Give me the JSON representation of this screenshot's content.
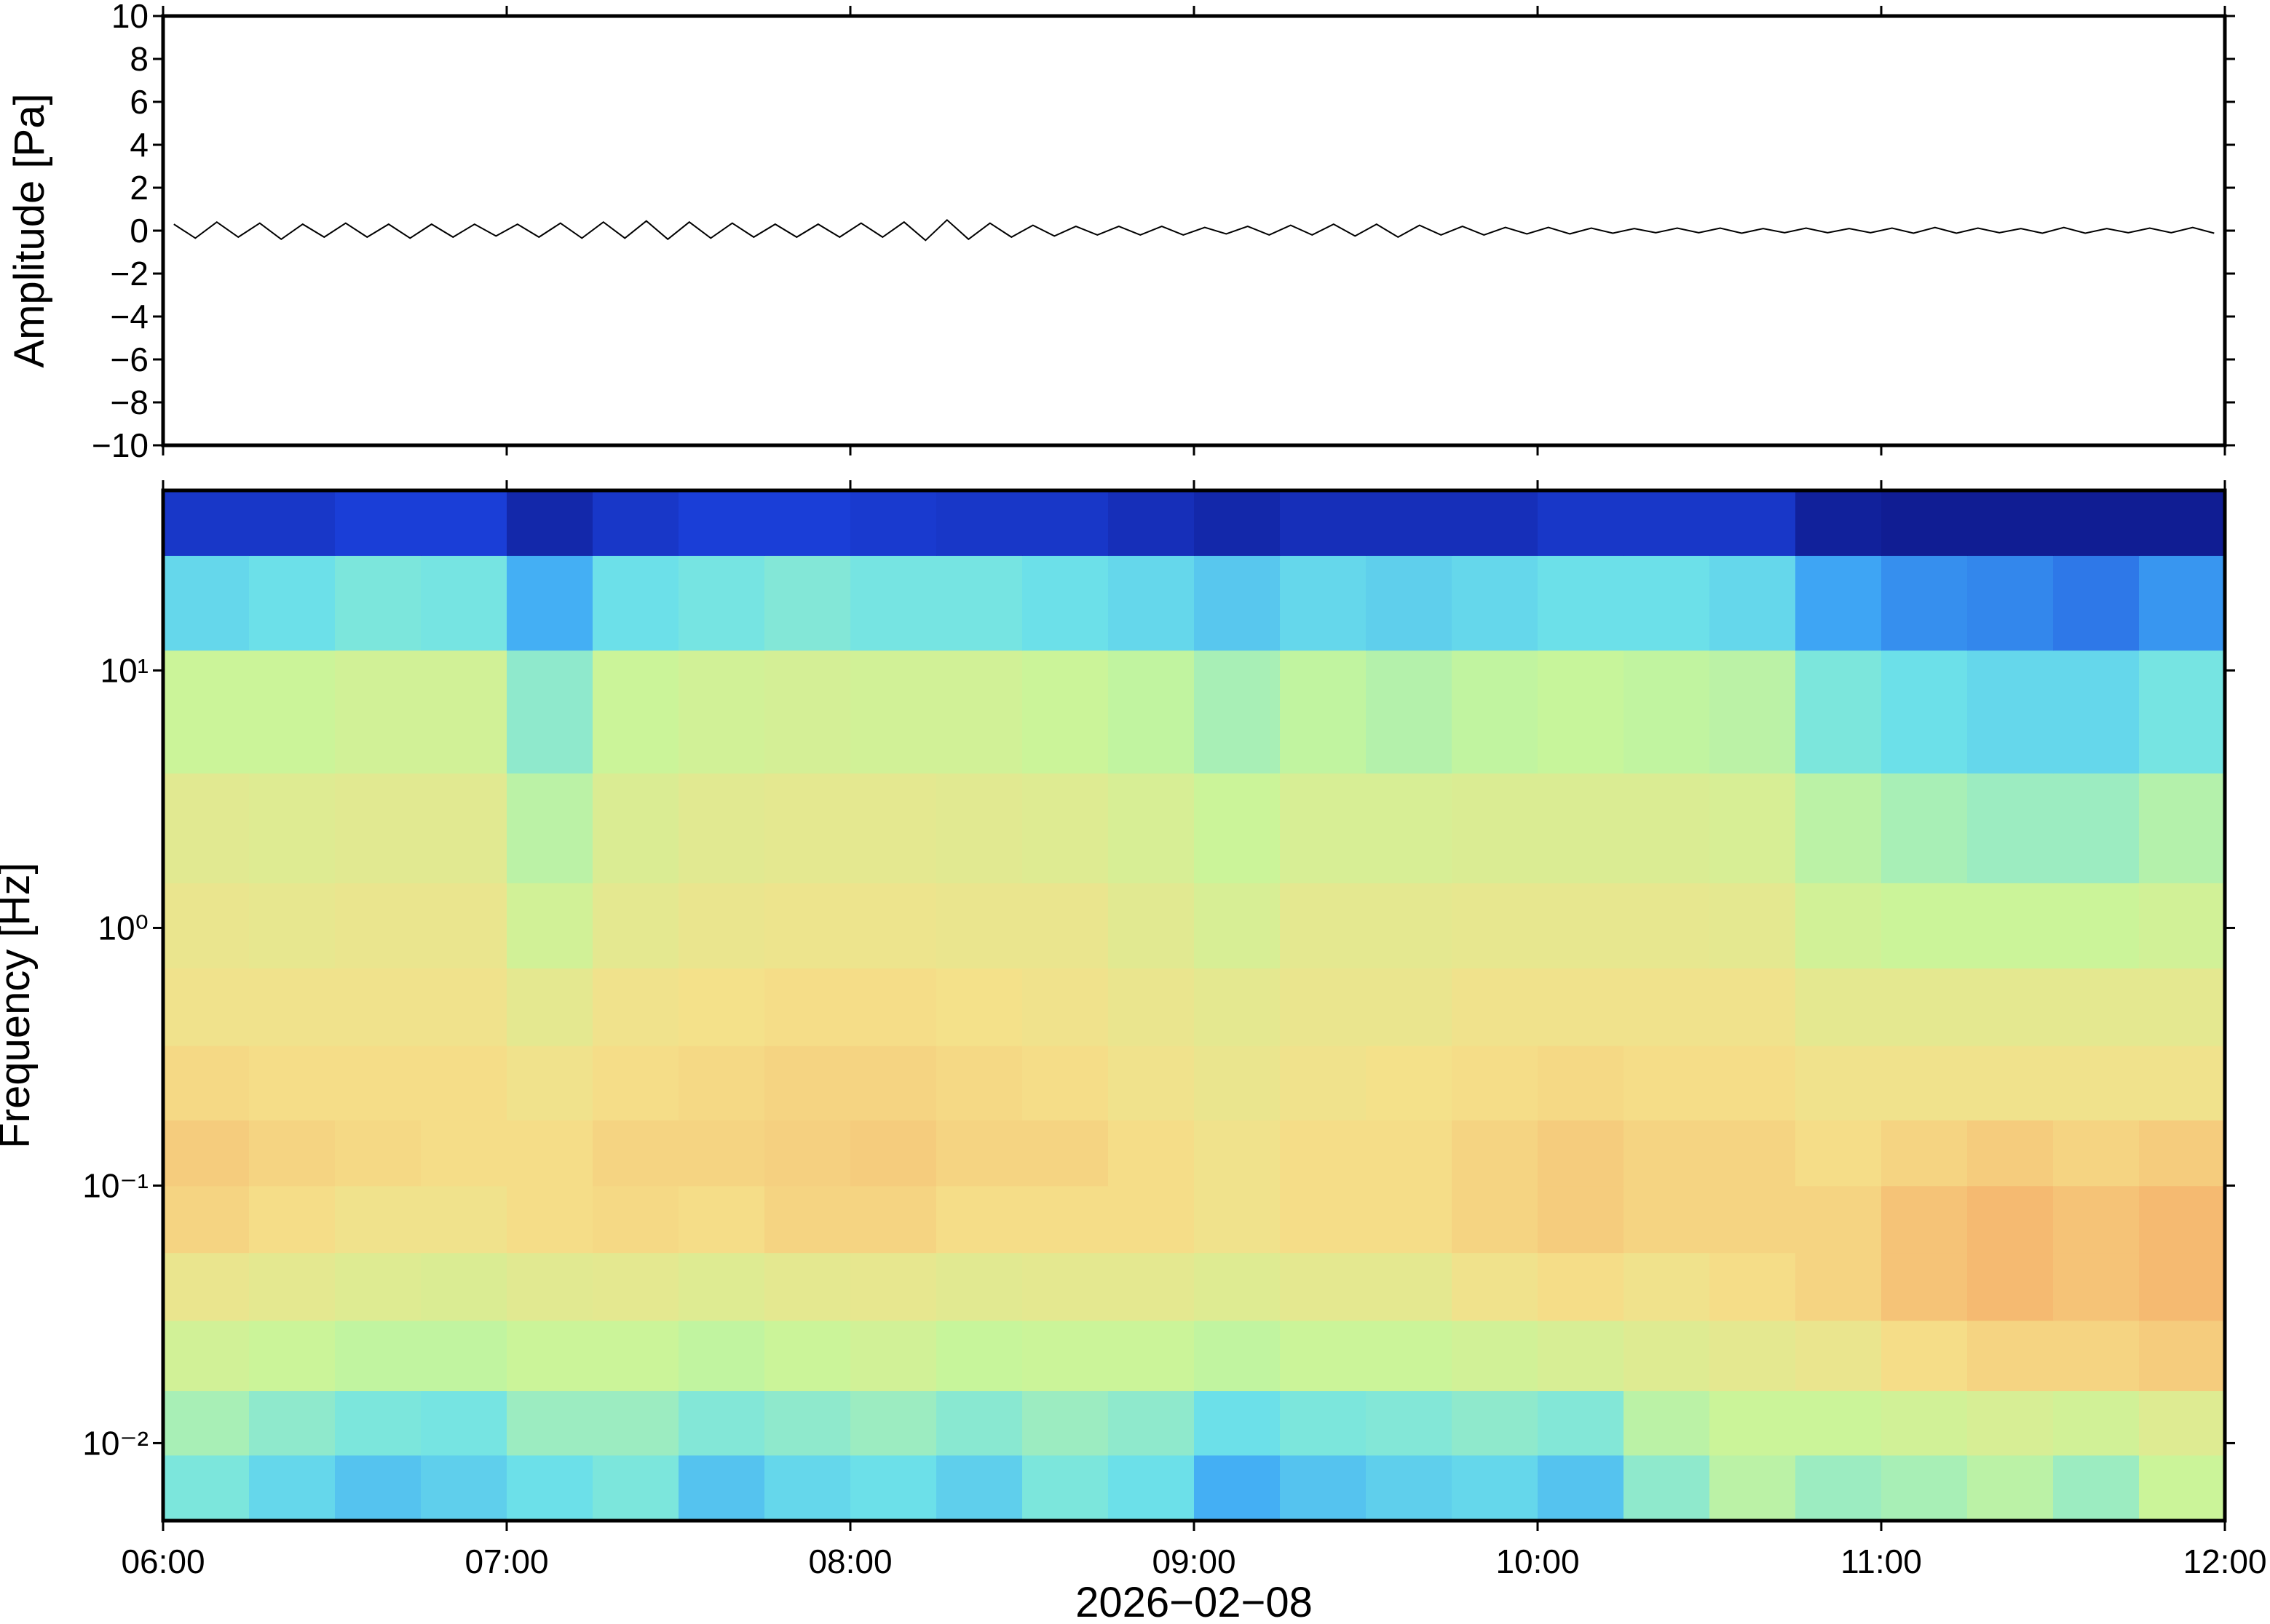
{
  "chart_data": [
    {
      "type": "line",
      "ylabel": "Amplitude [Pa]",
      "color": "#000000",
      "xlim": [
        "06:00",
        "12:00"
      ],
      "xticks": [
        "06:00",
        "07:00",
        "08:00",
        "09:00",
        "10:00",
        "11:00",
        "12:00"
      ],
      "ylim": [
        -10,
        10
      ],
      "yticks": [
        {
          "value": -10,
          "label": "−10"
        },
        {
          "value": -8,
          "label": "−8"
        },
        {
          "value": -6,
          "label": "−6"
        },
        {
          "value": -4,
          "label": "−4"
        },
        {
          "value": -2,
          "label": "−2"
        },
        0,
        2,
        4,
        6,
        8,
        10
      ],
      "values": [
        0.3,
        -0.35,
        0.4,
        -0.3,
        0.35,
        -0.4,
        0.3,
        -0.3,
        0.35,
        -0.3,
        0.3,
        -0.35,
        0.3,
        -0.3,
        0.3,
        -0.25,
        0.3,
        -0.3,
        0.35,
        -0.35,
        0.4,
        -0.35,
        0.45,
        -0.4,
        0.4,
        -0.35,
        0.35,
        -0.3,
        0.3,
        -0.3,
        0.3,
        -0.3,
        0.35,
        -0.3,
        0.4,
        -0.45,
        0.5,
        -0.4,
        0.35,
        -0.3,
        0.25,
        -0.25,
        0.2,
        -0.2,
        0.2,
        -0.2,
        0.2,
        -0.2,
        0.15,
        -0.15,
        0.2,
        -0.2,
        0.25,
        -0.2,
        0.3,
        -0.25,
        0.3,
        -0.3,
        0.25,
        -0.2,
        0.2,
        -0.2,
        0.15,
        -0.15,
        0.15,
        -0.15,
        0.12,
        -0.12,
        0.1,
        -0.1,
        0.12,
        -0.1,
        0.12,
        -0.12,
        0.1,
        -0.1,
        0.12,
        -0.1,
        0.1,
        -0.1,
        0.12,
        -0.12,
        0.15,
        -0.12,
        0.12,
        -0.1,
        0.1,
        -0.12,
        0.15,
        -0.12,
        0.1,
        -0.1,
        0.12,
        -0.1,
        0.15,
        -0.12
      ]
    },
    {
      "type": "heatmap",
      "ylabel": "Frequency [Hz]",
      "xlabel": "2026−02−08",
      "ylog": true,
      "xlim": [
        "06:00",
        "12:00"
      ],
      "xticks": [
        "06:00",
        "07:00",
        "08:00",
        "09:00",
        "10:00",
        "11:00",
        "12:00"
      ],
      "ylim": [
        0.005,
        50
      ],
      "yticks": [
        {
          "value": 0.01,
          "label": "10⁻²"
        },
        {
          "value": 0.1,
          "label": "10⁻¹"
        },
        {
          "value": 1,
          "label": "10⁰"
        },
        {
          "value": 10,
          "label": "10¹"
        }
      ],
      "zlim": [
        0,
        100
      ],
      "colors": [
        "#0b0b6e",
        "#1a3fd9",
        "#3fa9f5",
        "#6fe3e8",
        "#c8f59a",
        "#f5e08a",
        "#f5a060",
        "#e04040"
      ],
      "y_edges": [
        0.005,
        0.009,
        0.016,
        0.03,
        0.055,
        0.1,
        0.18,
        0.35,
        0.7,
        1.5,
        4,
        12,
        28,
        50
      ],
      "z": [
        [
          45,
          40,
          35,
          38,
          42,
          45,
          35,
          40,
          42,
          38,
          45,
          42,
          30,
          35,
          38,
          40,
          35,
          48,
          55,
          50,
          52,
          55,
          50,
          58
        ],
        [
          52,
          48,
          45,
          44,
          50,
          50,
          46,
          48,
          50,
          47,
          50,
          48,
          42,
          45,
          46,
          48,
          46,
          55,
          58,
          58,
          60,
          62,
          60,
          64
        ],
        [
          60,
          58,
          56,
          56,
          58,
          58,
          56,
          58,
          60,
          57,
          58,
          58,
          56,
          58,
          58,
          60,
          62,
          64,
          66,
          68,
          72,
          74,
          74,
          76
        ],
        [
          68,
          66,
          64,
          63,
          65,
          66,
          64,
          66,
          67,
          65,
          66,
          66,
          64,
          66,
          66,
          70,
          72,
          70,
          72,
          74,
          78,
          80,
          78,
          80
        ],
        [
          74,
          72,
          70,
          70,
          72,
          73,
          72,
          74,
          74,
          72,
          72,
          72,
          70,
          72,
          72,
          74,
          76,
          74,
          74,
          74,
          78,
          80,
          78,
          80
        ],
        [
          76,
          74,
          73,
          72,
          72,
          74,
          74,
          75,
          76,
          74,
          74,
          72,
          70,
          72,
          72,
          74,
          76,
          74,
          74,
          72,
          74,
          76,
          74,
          76
        ],
        [
          73,
          72,
          72,
          72,
          70,
          72,
          73,
          74,
          74,
          73,
          72,
          70,
          68,
          70,
          71,
          72,
          73,
          72,
          72,
          70,
          70,
          70,
          70,
          70
        ],
        [
          70,
          70,
          70,
          70,
          66,
          70,
          71,
          72,
          72,
          71,
          70,
          68,
          66,
          68,
          68,
          70,
          70,
          70,
          70,
          66,
          66,
          66,
          66,
          66
        ],
        [
          68,
          67,
          68,
          68,
          60,
          66,
          68,
          69,
          69,
          68,
          68,
          65,
          62,
          66,
          66,
          67,
          67,
          67,
          66,
          60,
          58,
          58,
          58,
          60
        ],
        [
          65,
          64,
          65,
          65,
          55,
          63,
          65,
          66,
          66,
          65,
          64,
          62,
          58,
          62,
          62,
          63,
          63,
          63,
          62,
          55,
          52,
          50,
          50,
          54
        ],
        [
          58,
          58,
          60,
          60,
          48,
          58,
          60,
          61,
          60,
          60,
          58,
          56,
          52,
          56,
          54,
          56,
          57,
          56,
          55,
          45,
          42,
          40,
          40,
          44
        ],
        [
          40,
          42,
          45,
          44,
          30,
          42,
          44,
          46,
          44,
          44,
          42,
          40,
          36,
          40,
          38,
          40,
          42,
          42,
          40,
          28,
          25,
          24,
          22,
          26
        ],
        [
          12,
          12,
          14,
          14,
          8,
          12,
          14,
          14,
          13,
          12,
          12,
          10,
          8,
          10,
          10,
          10,
          12,
          12,
          12,
          6,
          5,
          5,
          5,
          5
        ]
      ]
    }
  ]
}
